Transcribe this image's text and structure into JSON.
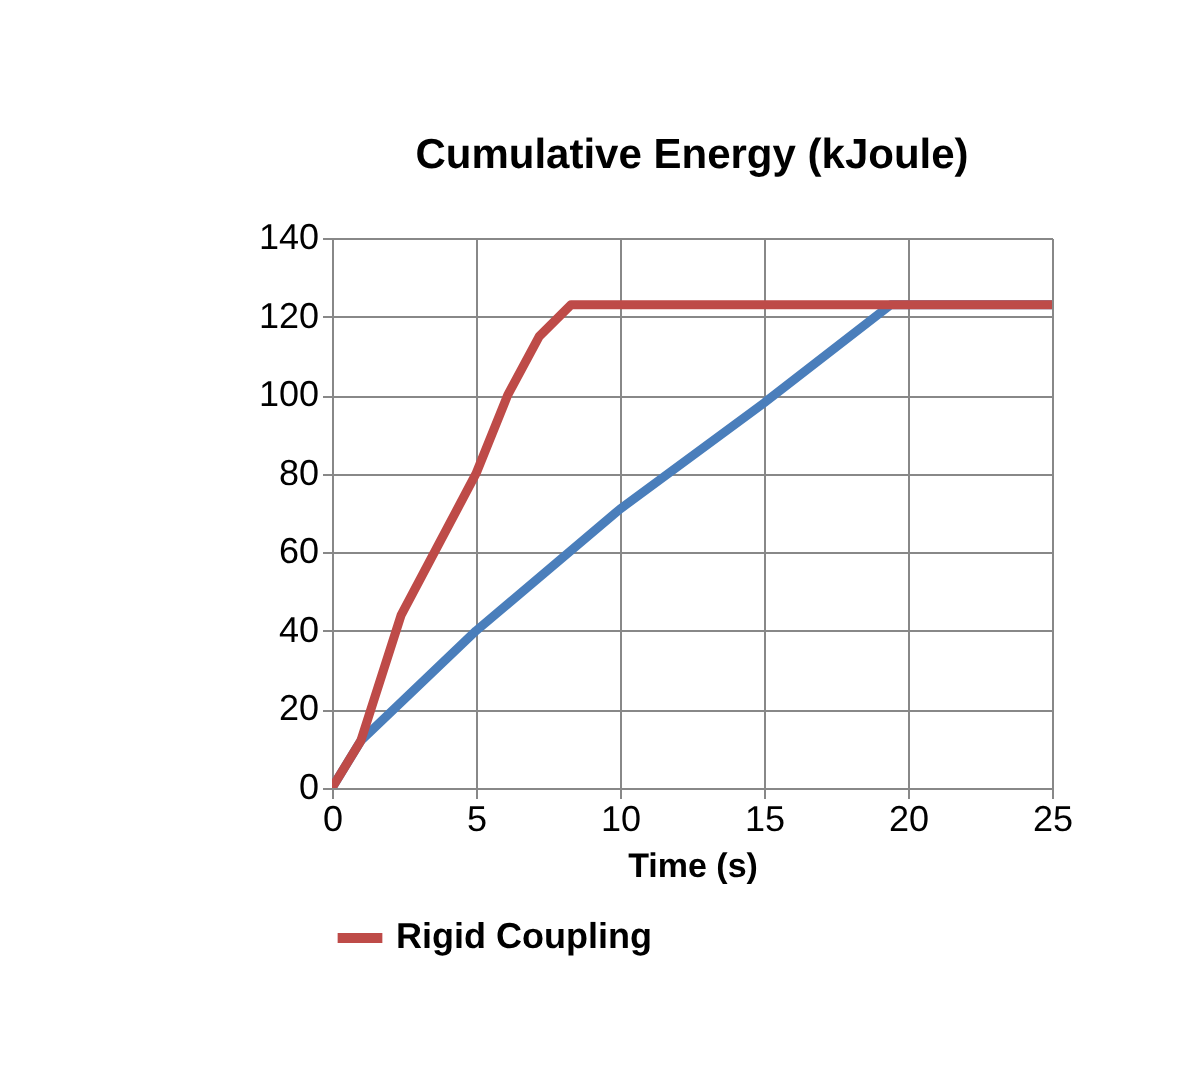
{
  "chart_data": {
    "type": "line",
    "title": "Cumulative Energy (kJoule)",
    "xlabel": "Time (s)",
    "xlim": [
      0,
      25
    ],
    "xticks": [
      0,
      5,
      10,
      15,
      20,
      25
    ],
    "ylim": [
      0,
      140
    ],
    "yticks": [
      0,
      20,
      40,
      60,
      80,
      100,
      120,
      140
    ],
    "grid": true,
    "legend": "bottom",
    "marker": "none",
    "line_style": "solid",
    "series": [
      {
        "color": "#4a7ebb",
        "x": [
          0,
          1,
          5,
          10,
          15,
          19.4,
          25
        ],
        "values": [
          0,
          12,
          40,
          71,
          98,
          123,
          123
        ]
      },
      {
        "name": "Rigid Coupling",
        "color": "#be4b48",
        "x": [
          0,
          1,
          2.4,
          5,
          6.1,
          7.2,
          8.3,
          25
        ],
        "values": [
          0,
          12,
          44,
          80,
          100,
          115,
          123,
          123
        ]
      }
    ]
  }
}
